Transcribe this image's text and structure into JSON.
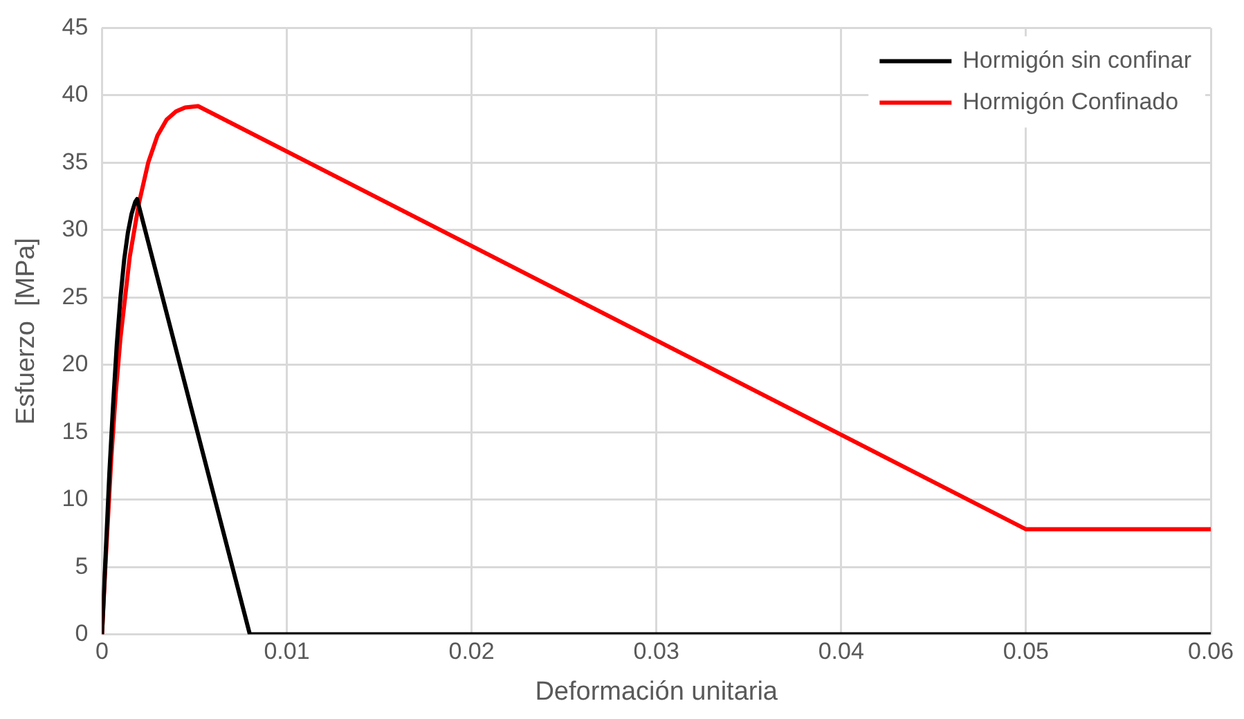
{
  "chart_data": {
    "type": "line",
    "xlabel": "Deformación unitaria",
    "ylabel": "Esfuerzo  [MPa]",
    "xlim": [
      0,
      0.06
    ],
    "xticks": [
      0,
      0.01,
      0.02,
      0.03,
      0.04,
      0.05,
      0.06
    ],
    "ylim": [
      0,
      45
    ],
    "yticks": [
      0,
      5,
      10,
      15,
      20,
      25,
      30,
      35,
      40,
      45
    ],
    "grid": true,
    "legend": "top right",
    "marker": "none",
    "line_style": "solid",
    "series": [
      {
        "name": "Hormigón sin confinar",
        "color": "#000000",
        "x": [
          0,
          0.0002,
          0.0004,
          0.0006,
          0.0008,
          0.001,
          0.0012,
          0.0014,
          0.0016,
          0.0018,
          0.0019,
          0.008,
          0.06
        ],
        "values": [
          0,
          6,
          12,
          17,
          21.5,
          25,
          27.8,
          29.8,
          31.2,
          32.1,
          32.3,
          0,
          0
        ]
      },
      {
        "name": "Hormigón Confinado",
        "color": "#ff0000",
        "x": [
          0,
          0.0002,
          0.0005,
          0.00075,
          0.001,
          0.0015,
          0.002,
          0.0025,
          0.003,
          0.0035,
          0.004,
          0.0045,
          0.0052,
          0.05,
          0.06
        ],
        "values": [
          0,
          5.5,
          13,
          18,
          22,
          28,
          32,
          35,
          37,
          38.2,
          38.8,
          39.1,
          39.2,
          7.8,
          7.8
        ]
      }
    ]
  }
}
